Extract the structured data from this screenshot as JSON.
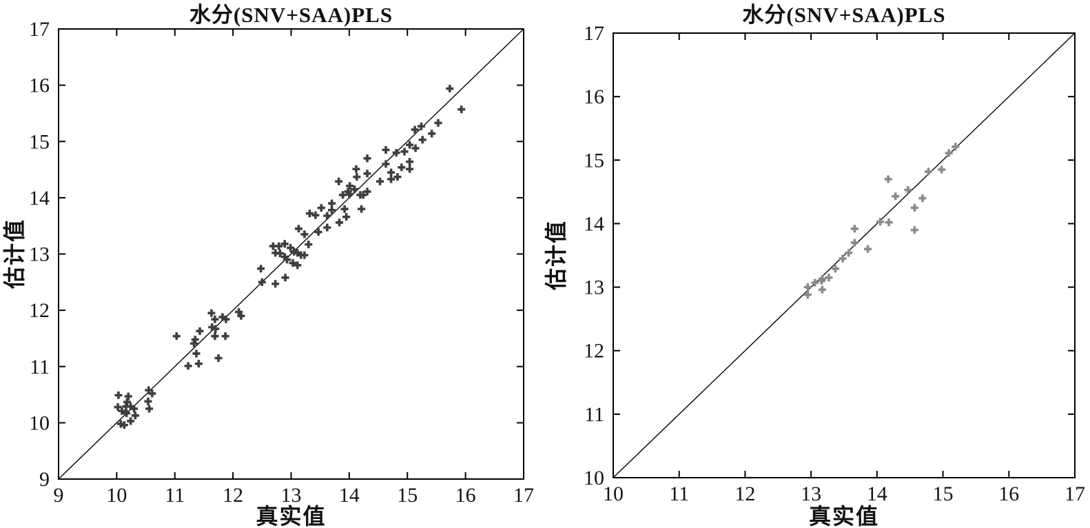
{
  "figure": {
    "background": "#ffffff",
    "axis_color": "#000000",
    "tick_label_color": "#141414"
  },
  "chart_data": [
    {
      "type": "scatter",
      "title": "水分(SNV+SAA)PLS",
      "xlabel": "真实值",
      "ylabel": "估计值",
      "xlim": [
        9,
        17
      ],
      "ylim": [
        9,
        17
      ],
      "xticks": [
        9,
        10,
        11,
        12,
        13,
        14,
        15,
        16,
        17
      ],
      "yticks": [
        9,
        10,
        11,
        12,
        13,
        14,
        15,
        16,
        17
      ],
      "grid": false,
      "legend": null,
      "marker": "plus",
      "marker_color": "#3e3e3e",
      "identity_line": true,
      "line_color": "#000000",
      "points": [
        [
          10.03,
          10.49
        ],
        [
          10.2,
          10.47
        ],
        [
          10.02,
          10.28
        ],
        [
          10.18,
          10.37
        ],
        [
          10.16,
          10.29
        ],
        [
          10.09,
          10.21
        ],
        [
          10.24,
          10.29
        ],
        [
          10.3,
          10.25
        ],
        [
          10.17,
          10.17
        ],
        [
          10.32,
          10.13
        ],
        [
          10.24,
          10.03
        ],
        [
          10.07,
          9.98
        ],
        [
          10.13,
          9.96
        ],
        [
          10.55,
          10.58
        ],
        [
          10.61,
          10.52
        ],
        [
          10.54,
          10.38
        ],
        [
          10.56,
          10.25
        ],
        [
          11.03,
          11.54
        ],
        [
          11.35,
          11.48
        ],
        [
          11.33,
          11.41
        ],
        [
          11.43,
          11.63
        ],
        [
          11.37,
          11.23
        ],
        [
          11.23,
          11.01
        ],
        [
          11.41,
          11.05
        ],
        [
          11.63,
          11.95
        ],
        [
          11.69,
          11.84
        ],
        [
          11.82,
          11.88
        ],
        [
          11.88,
          11.84
        ],
        [
          11.64,
          11.7
        ],
        [
          11.7,
          11.67
        ],
        [
          11.69,
          11.54
        ],
        [
          11.87,
          11.54
        ],
        [
          11.75,
          11.15
        ],
        [
          12.1,
          11.97
        ],
        [
          12.14,
          11.9
        ],
        [
          12.48,
          12.74
        ],
        [
          12.5,
          12.5
        ],
        [
          12.73,
          12.47
        ],
        [
          12.9,
          12.58
        ],
        [
          12.69,
          13.14
        ],
        [
          12.79,
          13.14
        ],
        [
          12.89,
          13.18
        ],
        [
          12.73,
          13.02
        ],
        [
          12.81,
          13.01
        ],
        [
          12.89,
          12.95
        ],
        [
          12.99,
          13.11
        ],
        [
          12.93,
          12.9
        ],
        [
          13.05,
          13.04
        ],
        [
          13.11,
          13.02
        ],
        [
          13.17,
          12.98
        ],
        [
          13.23,
          12.98
        ],
        [
          13.03,
          12.84
        ],
        [
          13.11,
          12.8
        ],
        [
          13.13,
          13.45
        ],
        [
          13.23,
          13.35
        ],
        [
          13.3,
          13.17
        ],
        [
          13.47,
          13.39
        ],
        [
          13.62,
          13.47
        ],
        [
          13.62,
          13.68
        ],
        [
          13.32,
          13.72
        ],
        [
          13.42,
          13.69
        ],
        [
          13.52,
          13.82
        ],
        [
          13.7,
          13.9
        ],
        [
          13.7,
          13.78
        ],
        [
          13.92,
          13.8
        ],
        [
          13.95,
          13.66
        ],
        [
          13.83,
          13.56
        ],
        [
          13.89,
          14.05
        ],
        [
          14.0,
          14.06
        ],
        [
          14.19,
          14.05
        ],
        [
          14.21,
          13.8
        ],
        [
          13.82,
          14.29
        ],
        [
          13.98,
          14.11
        ],
        [
          14.01,
          14.21
        ],
        [
          14.09,
          14.15
        ],
        [
          14.12,
          14.51
        ],
        [
          14.13,
          14.37
        ],
        [
          14.24,
          14.05
        ],
        [
          14.31,
          14.11
        ],
        [
          14.31,
          14.43
        ],
        [
          14.31,
          14.7
        ],
        [
          14.53,
          14.29
        ],
        [
          14.63,
          14.6
        ],
        [
          14.63,
          14.85
        ],
        [
          14.72,
          14.33
        ],
        [
          14.72,
          14.45
        ],
        [
          14.83,
          14.37
        ],
        [
          14.81,
          14.8
        ],
        [
          14.9,
          14.54
        ],
        [
          14.95,
          14.82
        ],
        [
          15.04,
          14.51
        ],
        [
          15.04,
          14.64
        ],
        [
          15.04,
          14.94
        ],
        [
          15.14,
          14.88
        ],
        [
          15.13,
          15.21
        ],
        [
          15.24,
          15.27
        ],
        [
          15.26,
          15.03
        ],
        [
          15.42,
          15.14
        ],
        [
          15.53,
          15.33
        ],
        [
          15.73,
          15.94
        ],
        [
          15.93,
          15.57
        ]
      ]
    },
    {
      "type": "scatter",
      "title": "水分(SNV+SAA)PLS",
      "xlabel": "真实值",
      "ylabel": "估计值",
      "xlim": [
        10,
        17
      ],
      "ylim": [
        10,
        17
      ],
      "xticks": [
        10,
        11,
        12,
        13,
        14,
        15,
        16,
        17
      ],
      "yticks": [
        10,
        11,
        12,
        13,
        14,
        15,
        16,
        17
      ],
      "grid": false,
      "legend": null,
      "marker": "plus",
      "marker_color": "#8a8a8a",
      "identity_line": true,
      "line_color": "#000000",
      "points": [
        [
          12.95,
          12.88
        ],
        [
          12.95,
          13.0
        ],
        [
          13.06,
          13.07
        ],
        [
          13.16,
          13.1
        ],
        [
          13.17,
          12.96
        ],
        [
          13.17,
          13.13
        ],
        [
          13.27,
          13.15
        ],
        [
          13.37,
          13.29
        ],
        [
          13.48,
          13.45
        ],
        [
          13.57,
          13.54
        ],
        [
          13.66,
          13.7
        ],
        [
          13.66,
          13.92
        ],
        [
          13.86,
          13.6
        ],
        [
          14.05,
          14.03
        ],
        [
          14.18,
          14.02
        ],
        [
          14.17,
          14.7
        ],
        [
          14.28,
          14.43
        ],
        [
          14.47,
          14.53
        ],
        [
          14.57,
          13.9
        ],
        [
          14.57,
          14.25
        ],
        [
          14.69,
          14.4
        ],
        [
          14.78,
          14.82
        ],
        [
          14.98,
          14.85
        ],
        [
          15.09,
          15.11
        ],
        [
          15.19,
          15.21
        ]
      ]
    }
  ]
}
